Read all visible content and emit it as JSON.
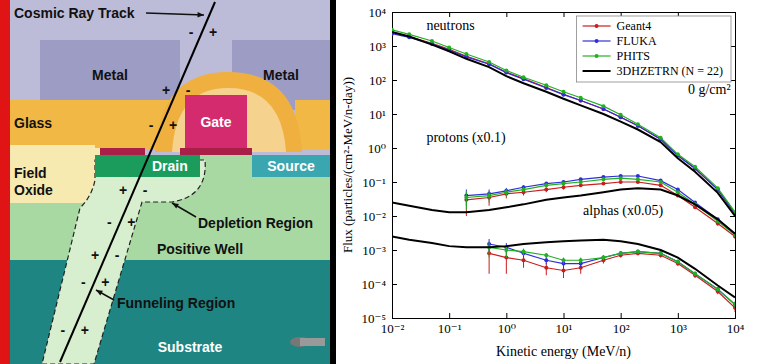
{
  "diagram": {
    "labels": {
      "track": "Cosmic Ray Track",
      "metal_left": "Metal",
      "metal_right": "Metal",
      "glass": "Glass",
      "field_oxide": "Field Oxide",
      "gate": "Gate",
      "drain": "Drain",
      "source": "Source",
      "depletion": "Depletion Region",
      "well": "Positive Well",
      "funnel": "Funneling Region",
      "substrate": "Substrate"
    },
    "charges": [
      "-",
      "+",
      "+",
      "-",
      "-",
      "+",
      "+",
      "-",
      "-",
      "+",
      "+",
      "-",
      "-",
      "+",
      "-",
      "+"
    ]
  },
  "chart_data": {
    "type": "line",
    "x_label": "Kinetic energy (MeV/n)",
    "y_label": "Flux (particles/(cm²-MeV/n-day))",
    "log": true,
    "grid": false,
    "legend": "upper right",
    "xlim": [
      0.01,
      10000
    ],
    "ylim": [
      1e-05,
      10000
    ],
    "xticks": [
      {
        "value": 0.01,
        "label": "10⁻²"
      },
      {
        "value": 0.1,
        "label": "10⁻¹"
      },
      {
        "value": 1,
        "label": "10⁰"
      },
      {
        "value": 10,
        "label": "10¹"
      },
      {
        "value": 100,
        "label": "10²"
      },
      {
        "value": 1000,
        "label": "10³"
      },
      {
        "value": 10000,
        "label": "10⁴"
      }
    ],
    "yticks": [
      {
        "value": 1e-05,
        "label": "10⁻⁵"
      },
      {
        "value": 0.0001,
        "label": "10⁻⁴"
      },
      {
        "value": 0.001,
        "label": "10⁻³"
      },
      {
        "value": 0.01,
        "label": "10⁻²"
      },
      {
        "value": 0.1,
        "label": "10⁻¹"
      },
      {
        "value": 1,
        "label": "10⁰"
      },
      {
        "value": 10,
        "label": "10¹"
      },
      {
        "value": 100,
        "label": "10²"
      },
      {
        "value": 1000,
        "label": "10³"
      },
      {
        "value": 10000,
        "label": "10⁴"
      }
    ],
    "x": [
      0.01,
      0.02,
      0.05,
      0.1,
      0.2,
      0.5,
      1,
      2,
      5,
      10,
      20,
      50,
      100,
      200,
      500,
      1000,
      2000,
      5000,
      10000
    ],
    "series": [
      {
        "name": "Geant4",
        "color": "#c81e1e",
        "marker": "circle",
        "line_style": "solid",
        "values": [
          2500,
          1900,
          1200,
          800,
          500,
          300,
          170,
          110,
          60,
          38,
          25,
          14,
          8,
          4.5,
          1.8,
          0.6,
          0.25,
          0.06,
          0.012
        ]
      },
      {
        "name": "FLUKA",
        "color": "#2f2fd8",
        "marker": "circle",
        "line_style": "solid",
        "values": [
          2300,
          1800,
          1150,
          760,
          480,
          290,
          165,
          105,
          58,
          37,
          25,
          14,
          8,
          4.5,
          1.8,
          0.6,
          0.25,
          0.06,
          0.012
        ]
      },
      {
        "name": "PHITS",
        "color": "#22b022",
        "marker": "circle",
        "line_style": "solid",
        "values": [
          3000,
          2200,
          1400,
          900,
          580,
          340,
          190,
          120,
          70,
          45,
          30,
          17,
          9.5,
          5,
          2,
          0.65,
          0.28,
          0.066,
          0.013
        ]
      },
      {
        "name": "3DHZETRN (N = 22)",
        "color": "#000000",
        "marker": "none",
        "line_style": "solid",
        "values": [
          2600,
          1900,
          1100,
          700,
          420,
          240,
          130,
          80,
          45,
          28,
          18,
          10,
          6,
          3.5,
          1.5,
          0.5,
          0.2,
          0.048,
          0.01
        ]
      },
      {
        "name": "Geant4",
        "color": "#c81e1e",
        "marker": "circle",
        "line_style": "solid",
        "values": [
          null,
          null,
          null,
          null,
          0.03,
          0.035,
          0.045,
          0.05,
          0.06,
          0.07,
          0.08,
          0.09,
          0.1,
          0.1,
          0.08,
          0.04,
          0.018,
          0.006,
          0.0025
        ],
        "errors": [
          null,
          null,
          null,
          null,
          0.02,
          0.015,
          0.012,
          0.01,
          0.01,
          0.01,
          0.008,
          0.008,
          0.008,
          0.007,
          0.006,
          0.004,
          0.002,
          0.0008,
          0.0003
        ]
      },
      {
        "name": "FLUKA",
        "color": "#2f2fd8",
        "marker": "circle",
        "line_style": "solid",
        "values": [
          null,
          null,
          null,
          null,
          0.04,
          0.045,
          0.055,
          0.07,
          0.09,
          0.1,
          0.12,
          0.14,
          0.15,
          0.15,
          0.11,
          0.06,
          0.025,
          0.008,
          0.003
        ],
        "errors": [
          null,
          null,
          null,
          null,
          0.02,
          0.015,
          0.012,
          0.01,
          0.01,
          0.01,
          0.008,
          0.008,
          0.008,
          0.007,
          0.006,
          0.004,
          0.002,
          0.0008,
          0.0003
        ]
      },
      {
        "name": "PHITS",
        "color": "#22b022",
        "marker": "circle",
        "line_style": "solid",
        "values": [
          null,
          null,
          null,
          null,
          0.035,
          0.04,
          0.05,
          0.06,
          0.08,
          0.09,
          0.1,
          0.12,
          0.13,
          0.12,
          0.1,
          0.05,
          0.022,
          0.007,
          0.0028
        ],
        "errors": [
          null,
          null,
          null,
          null,
          0.02,
          0.015,
          0.012,
          0.01,
          0.01,
          0.01,
          0.008,
          0.008,
          0.008,
          0.007,
          0.006,
          0.004,
          0.002,
          0.0008,
          0.0003
        ]
      },
      {
        "name": "3DHZETRN (N = 22)",
        "color": "#000000",
        "marker": "none",
        "line_style": "solid",
        "values": [
          0.025,
          0.02,
          0.015,
          0.013,
          0.013,
          0.015,
          0.018,
          0.022,
          0.03,
          0.035,
          0.04,
          0.05,
          0.06,
          0.065,
          0.06,
          0.04,
          0.022,
          0.008,
          0.003
        ]
      },
      {
        "name": "Geant4",
        "color": "#c81e1e",
        "marker": "circle",
        "line_style": "solid",
        "values": [
          null,
          null,
          null,
          null,
          null,
          0.0008,
          0.0006,
          0.0005,
          0.0003,
          0.00025,
          0.0003,
          0.0005,
          0.0007,
          0.0008,
          0.0007,
          0.0004,
          0.00018,
          6e-05,
          2e-05
        ],
        "errors": [
          null,
          null,
          null,
          null,
          null,
          0.0006,
          0.0004,
          0.0002,
          0.00012,
          0.0001,
          0.0001,
          0.0001,
          0.0001,
          0.0001,
          0.0001,
          6e-05,
          3e-05,
          1e-05,
          5e-06
        ]
      },
      {
        "name": "FLUKA",
        "color": "#2f2fd8",
        "marker": "circle",
        "line_style": "solid",
        "values": [
          null,
          null,
          null,
          null,
          null,
          0.0015,
          0.0012,
          0.0008,
          0.0005,
          0.0004,
          0.0004,
          0.0006,
          0.0008,
          0.0009,
          0.0008,
          0.00045,
          0.0002,
          7e-05,
          2.5e-05
        ],
        "errors": [
          null,
          null,
          null,
          null,
          null,
          0.0006,
          0.0004,
          0.0002,
          0.00012,
          0.0001,
          0.0001,
          0.0001,
          0.0001,
          0.0001,
          0.0001,
          6e-05,
          3e-05,
          1e-05,
          5e-06
        ]
      },
      {
        "name": "PHITS",
        "color": "#22b022",
        "marker": "circle",
        "line_style": "solid",
        "values": [
          null,
          null,
          null,
          null,
          null,
          0.0012,
          0.001,
          0.0009,
          0.0007,
          0.0005,
          0.0005,
          0.0006,
          0.0008,
          0.0009,
          0.0008,
          0.00045,
          0.0002,
          7e-05,
          2.5e-05
        ],
        "errors": [
          null,
          null,
          null,
          null,
          null,
          0.0006,
          0.0004,
          0.0002,
          0.00012,
          0.0001,
          0.0001,
          0.0001,
          0.0001,
          0.0001,
          0.0001,
          6e-05,
          3e-05,
          1e-05,
          5e-06
        ]
      },
      {
        "name": "3DHZETRN (N = 22)",
        "color": "#000000",
        "marker": "none",
        "line_style": "solid",
        "values": [
          0.0025,
          0.002,
          0.0016,
          0.0013,
          0.0012,
          0.0012,
          0.0013,
          0.0015,
          0.0017,
          0.0018,
          0.0019,
          0.002,
          0.0018,
          0.0015,
          0.001,
          0.0006,
          0.00028,
          9e-05,
          4e-05
        ]
      }
    ],
    "annotations": [
      {
        "text": "neutrons",
        "x": 0.04,
        "y": 3000
      },
      {
        "text": "protons (x0.1)",
        "x": 0.04,
        "y": 1.5
      },
      {
        "text": "alphas (x0.05)",
        "x": 22,
        "y": 0.011
      },
      {
        "text": "0 g/cm²",
        "x": 1500,
        "y": 40
      }
    ]
  }
}
